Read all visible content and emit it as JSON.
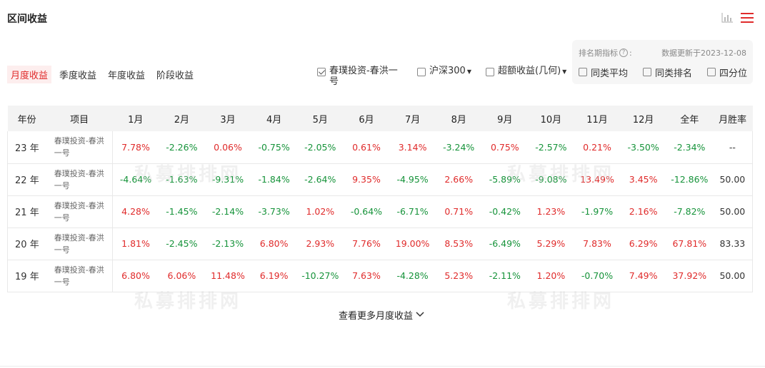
{
  "section_title": "区间收益",
  "icons": {
    "chart": "bar-chart-icon",
    "menu": "menu-icon"
  },
  "tabs": [
    {
      "label": "月度收益",
      "active": true
    },
    {
      "label": "季度收益",
      "active": false
    },
    {
      "label": "年度收益",
      "active": false
    },
    {
      "label": "阶段收益",
      "active": false
    }
  ],
  "checks": [
    {
      "label": "春璞投资-春洪一\n号",
      "checked": true,
      "dropdown": false
    },
    {
      "label": "沪深300",
      "checked": false,
      "dropdown": true
    },
    {
      "label": "超额收益(几何)",
      "checked": false,
      "dropdown": true
    }
  ],
  "panel": {
    "label": "排名期指标",
    "help": "?",
    "colon": ":",
    "date": "数据更新于2023-12-08",
    "checks": [
      "同类平均",
      "同类排名",
      "四分位"
    ]
  },
  "table": {
    "headers": [
      "年份",
      "项目",
      "1月",
      "2月",
      "3月",
      "4月",
      "5月",
      "6月",
      "7月",
      "8月",
      "9月",
      "10月",
      "11月",
      "12月",
      "全年",
      "月胜率"
    ],
    "rows": [
      {
        "year": "23 年",
        "item": "春璞投资-春洪\n一号",
        "values": [
          "7.78%",
          "-2.26%",
          "0.06%",
          "-0.75%",
          "-2.05%",
          "0.61%",
          "3.14%",
          "-3.24%",
          "0.75%",
          "-2.57%",
          "0.21%",
          "-3.50%",
          "-2.34%"
        ],
        "win": "--"
      },
      {
        "year": "22 年",
        "item": "春璞投资-春洪\n一号",
        "values": [
          "-4.64%",
          "-1.63%",
          "-9.31%",
          "-1.84%",
          "-2.64%",
          "9.35%",
          "-4.95%",
          "2.66%",
          "-5.89%",
          "-9.08%",
          "13.49%",
          "3.45%",
          "-12.86%"
        ],
        "win": "50.00"
      },
      {
        "year": "21 年",
        "item": "春璞投资-春洪\n一号",
        "values": [
          "4.28%",
          "-1.45%",
          "-2.14%",
          "-3.73%",
          "1.02%",
          "-0.64%",
          "-6.71%",
          "0.71%",
          "-0.42%",
          "1.23%",
          "-1.97%",
          "2.16%",
          "-7.82%"
        ],
        "win": "50.00"
      },
      {
        "year": "20 年",
        "item": "春璞投资-春洪\n一号",
        "values": [
          "1.81%",
          "-2.45%",
          "-2.13%",
          "6.80%",
          "2.93%",
          "7.76%",
          "19.00%",
          "8.53%",
          "-6.49%",
          "5.29%",
          "7.83%",
          "6.29%",
          "67.81%"
        ],
        "win": "83.33"
      },
      {
        "year": "19 年",
        "item": "春璞投资-春洪\n一号",
        "values": [
          "6.80%",
          "6.06%",
          "11.48%",
          "6.19%",
          "-10.27%",
          "7.63%",
          "-4.28%",
          "5.23%",
          "-2.11%",
          "1.20%",
          "-0.70%",
          "7.49%",
          "37.92%"
        ],
        "win": "50.00"
      }
    ]
  },
  "watermark": "私募排排网",
  "more_label": "查看更多月度收益",
  "colors": {
    "positive": "#e02b2b",
    "negative": "#16933a",
    "accent": "#e02b2b"
  }
}
